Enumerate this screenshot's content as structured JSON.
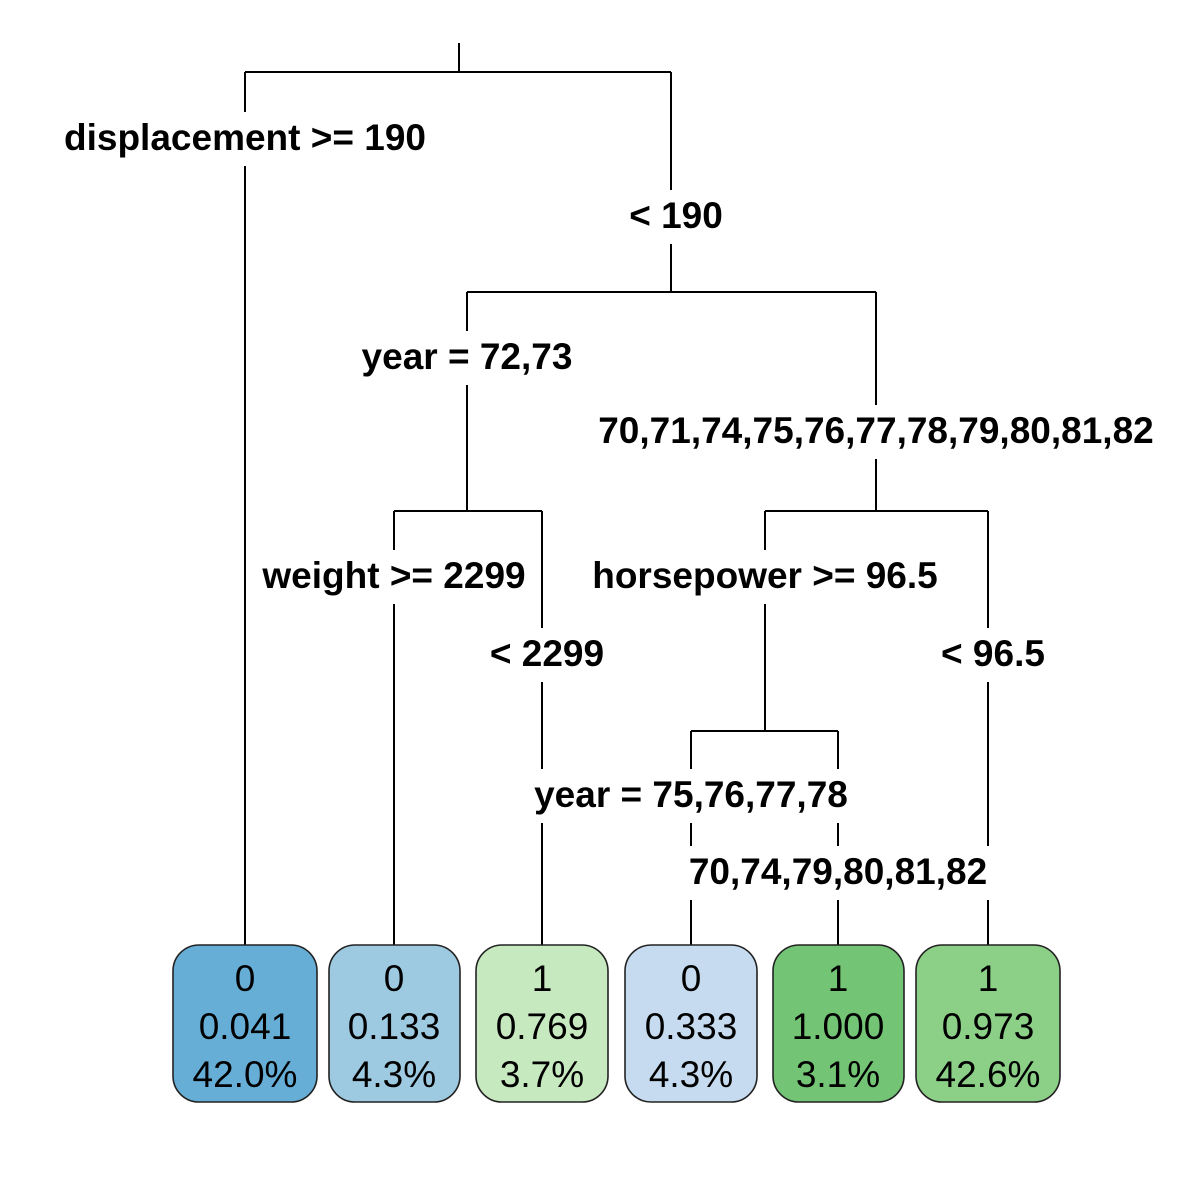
{
  "splits": {
    "root_left": "displacement >= 190",
    "root_right": "< 190",
    "year1_left": "year = 72,73",
    "year1_right": "70,71,74,75,76,77,78,79,80,81,82",
    "weight_left": "weight >= 2299",
    "weight_right": "< 2299",
    "hp_left": "horsepower >= 96.5",
    "hp_right": "< 96.5",
    "year2_left": "year = 75,76,77,78",
    "year2_right": "70,74,79,80,81,82"
  },
  "leaves": [
    {
      "class": "0",
      "prob": "0.041",
      "pct": "42.0%",
      "color": "#67aed6"
    },
    {
      "class": "0",
      "prob": "0.133",
      "pct": "4.3%",
      "color": "#9ecae1"
    },
    {
      "class": "1",
      "prob": "0.769",
      "pct": "3.7%",
      "color": "#c7e9c0"
    },
    {
      "class": "0",
      "prob": "0.333",
      "pct": "4.3%",
      "color": "#c6dbef"
    },
    {
      "class": "1",
      "prob": "1.000",
      "pct": "3.1%",
      "color": "#74c476"
    },
    {
      "class": "1",
      "prob": "0.973",
      "pct": "42.6%",
      "color": "#8ccf87"
    }
  ]
}
